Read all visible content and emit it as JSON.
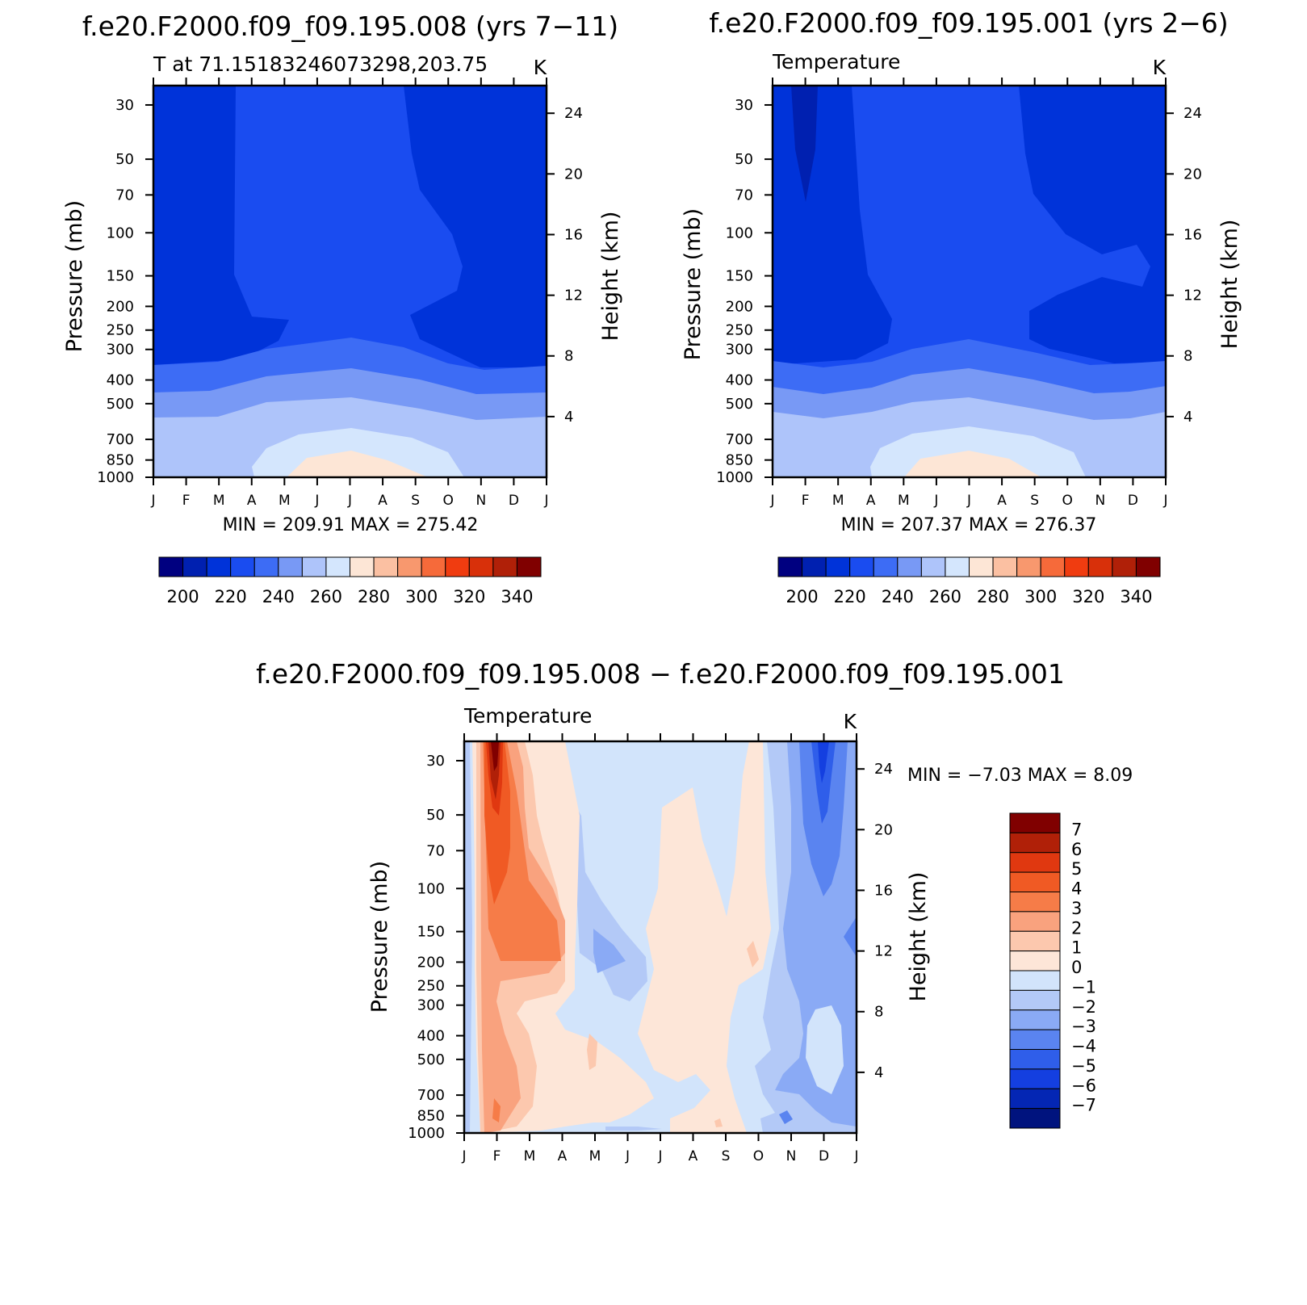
{
  "figure": {
    "panels": [
      {
        "title": "f.e20.F2000.f09_f09.195.008 (yrs 7−11)",
        "left_string": "T at 71.15183246073298,203.75",
        "right_string": "K",
        "ylabel": "Pressure (mb)",
        "y2label": "Height (km)",
        "minmax": "MIN = 209.91  MAX = 275.42"
      },
      {
        "title": "f.e20.F2000.f09_f09.195.001 (yrs 2−6)",
        "left_string": "Temperature",
        "right_string": "K",
        "ylabel": "Pressure (mb)",
        "y2label": "Height (km)",
        "minmax": "MIN = 207.37  MAX = 276.37"
      },
      {
        "title": "f.e20.F2000.f09_f09.195.008 − f.e20.F2000.f09_f09.195.001",
        "left_string": "Temperature",
        "right_string": "K",
        "ylabel": "Pressure (mb)",
        "y2label": "Height (km)",
        "minmax": "MIN =   −7.03 MAX =    8.09"
      }
    ],
    "month_labels": [
      "J",
      "F",
      "M",
      "A",
      "M",
      "J",
      "J",
      "A",
      "S",
      "O",
      "N",
      "D",
      "J"
    ],
    "pressure_ticks": [
      "30",
      "50",
      "70",
      "100",
      "150",
      "200",
      "250",
      "300",
      "400",
      "500",
      "700",
      "850",
      "1000"
    ],
    "height_ticks": [
      "24",
      "20",
      "16",
      "12",
      "8",
      "4"
    ],
    "cb_labels_abs": [
      "200",
      "220",
      "240",
      "260",
      "280",
      "300",
      "320",
      "340"
    ],
    "cb_labels_diff": [
      "7",
      "6",
      "5",
      "4",
      "3",
      "2",
      "1",
      "0",
      "−1",
      "−2",
      "−3",
      "−4",
      "−5",
      "−6",
      "−7"
    ],
    "colors_abs": [
      "#000080",
      "#0020b0",
      "#0033d9",
      "#1a4cf0",
      "#3d6cf5",
      "#7899f5",
      "#aec4fa",
      "#d4e6fd",
      "#fde6d6",
      "#fbc0a2",
      "#f8986e",
      "#f66a3a",
      "#f03c10",
      "#d8300a",
      "#b02008",
      "#800000"
    ],
    "colors_diff": [
      "#800000",
      "#b02008",
      "#e03810",
      "#f05a24",
      "#f67c48",
      "#f9a27e",
      "#fcc8ae",
      "#fde6d8",
      "#d2e4fb",
      "#b3c9f7",
      "#8aaaf5",
      "#5a84f0",
      "#2f5eea",
      "#143fe0",
      "#0426b4",
      "#00137e"
    ]
  },
  "chart_data": [
    {
      "type": "heatmap",
      "title": "f.e20.F2000.f09_f09.195.008 (yrs 7−11)",
      "left_string": "T at 71.15183246073298,203.75",
      "units": "K",
      "x": [
        "J",
        "F",
        "M",
        "A",
        "M",
        "J",
        "J",
        "A",
        "S",
        "O",
        "N",
        "D",
        "J"
      ],
      "y_pressure_mb": [
        30,
        50,
        70,
        100,
        150,
        200,
        250,
        300,
        400,
        500,
        700,
        850,
        1000
      ],
      "y_height_km": [
        24,
        20,
        16,
        12,
        8,
        4
      ],
      "levels": [
        200,
        205,
        210,
        215,
        220,
        225,
        230,
        235,
        240,
        245,
        250,
        255,
        260,
        265,
        270,
        275,
        280,
        285,
        290,
        295,
        300,
        305,
        310,
        315,
        320,
        325,
        330,
        335,
        340
      ],
      "min": 209.91,
      "max": 275.42,
      "ylabel": "Pressure (mb)",
      "y2label": "Height (km)"
    },
    {
      "type": "heatmap",
      "title": "f.e20.F2000.f09_f09.195.001 (yrs 2−6)",
      "left_string": "Temperature",
      "units": "K",
      "x": [
        "J",
        "F",
        "M",
        "A",
        "M",
        "J",
        "J",
        "A",
        "S",
        "O",
        "N",
        "D",
        "J"
      ],
      "y_pressure_mb": [
        30,
        50,
        70,
        100,
        150,
        200,
        250,
        300,
        400,
        500,
        700,
        850,
        1000
      ],
      "y_height_km": [
        24,
        20,
        16,
        12,
        8,
        4
      ],
      "min": 207.37,
      "max": 276.37,
      "ylabel": "Pressure (mb)",
      "y2label": "Height (km)"
    },
    {
      "type": "heatmap",
      "title": "f.e20.F2000.f09_f09.195.008 − f.e20.F2000.f09_f09.195.001",
      "left_string": "Temperature",
      "units": "K",
      "x": [
        "J",
        "F",
        "M",
        "A",
        "M",
        "J",
        "J",
        "A",
        "S",
        "O",
        "N",
        "D",
        "J"
      ],
      "y_pressure_mb": [
        30,
        50,
        70,
        100,
        150,
        200,
        250,
        300,
        400,
        500,
        700,
        850,
        1000
      ],
      "y_height_km": [
        24,
        20,
        16,
        12,
        8,
        4
      ],
      "levels": [
        -7,
        -6,
        -5,
        -4,
        -3,
        -2,
        -1,
        0,
        1,
        2,
        3,
        4,
        5,
        6,
        7
      ],
      "min": -7.03,
      "max": 8.09,
      "ylabel": "Pressure (mb)",
      "y2label": "Height (km)"
    }
  ]
}
